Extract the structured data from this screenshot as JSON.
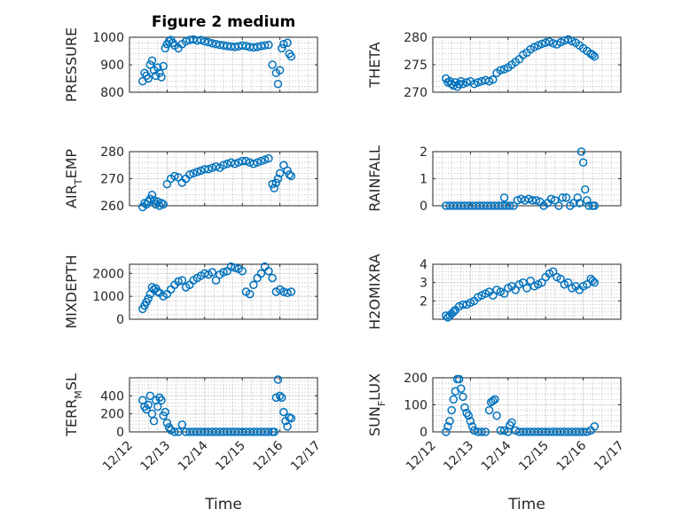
{
  "figure": {
    "title": "Figure 2 medium",
    "x_ticks": [
      "12/12",
      "12/13",
      "12/14",
      "12/15",
      "12/16",
      "12/17"
    ],
    "x_label": "Time",
    "marker_color": "#0072bd"
  },
  "chart_data": [
    {
      "type": "scatter",
      "panel": "pressure",
      "ylabel_parts": [
        "PRESSURE"
      ],
      "ylim": [
        800,
        1000
      ],
      "yticks": [
        800,
        900,
        1000
      ],
      "xlim": [
        "12/12",
        "12/17"
      ],
      "x": [
        12.35,
        12.4,
        12.45,
        12.5,
        12.55,
        12.6,
        12.65,
        12.7,
        12.75,
        12.8,
        12.85,
        12.9,
        12.95,
        13.0,
        13.05,
        13.1,
        13.15,
        13.2,
        13.3,
        13.4,
        13.5,
        13.6,
        13.7,
        13.8,
        13.9,
        14.0,
        14.1,
        14.2,
        14.3,
        14.4,
        14.5,
        14.6,
        14.7,
        14.8,
        14.9,
        15.0,
        15.1,
        15.2,
        15.3,
        15.4,
        15.5,
        15.6,
        15.7,
        15.8,
        15.9,
        15.95,
        16.0,
        16.05,
        16.1,
        16.2,
        16.25,
        16.3
      ],
      "y": [
        840,
        870,
        860,
        850,
        900,
        915,
        880,
        860,
        890,
        870,
        855,
        895,
        960,
        975,
        985,
        990,
        980,
        970,
        960,
        975,
        985,
        990,
        992,
        988,
        990,
        985,
        982,
        978,
        975,
        972,
        970,
        968,
        966,
        965,
        967,
        970,
        968,
        965,
        963,
        965,
        968,
        970,
        972,
        900,
        870,
        830,
        880,
        960,
        975,
        980,
        940,
        930
      ]
    },
    {
      "type": "scatter",
      "panel": "theta",
      "ylabel_parts": [
        "THETA"
      ],
      "ylim": [
        270,
        280
      ],
      "yticks": [
        270,
        275,
        280
      ],
      "xlim": [
        "12/12",
        "12/17"
      ],
      "x": [
        12.35,
        12.4,
        12.45,
        12.5,
        12.55,
        12.6,
        12.65,
        12.7,
        12.75,
        12.8,
        12.9,
        13.0,
        13.1,
        13.2,
        13.3,
        13.4,
        13.5,
        13.6,
        13.7,
        13.8,
        13.9,
        14.0,
        14.1,
        14.2,
        14.3,
        14.4,
        14.5,
        14.6,
        14.7,
        14.8,
        14.9,
        15.0,
        15.1,
        15.2,
        15.3,
        15.4,
        15.5,
        15.6,
        15.7,
        15.8,
        15.9,
        16.0,
        16.1,
        16.2,
        16.25,
        16.3
      ],
      "y": [
        272.5,
        271.8,
        272.0,
        271.5,
        271.2,
        271.8,
        271.0,
        271.5,
        272.0,
        271.5,
        271.8,
        272.0,
        271.5,
        271.8,
        272.0,
        272.2,
        272.0,
        272.3,
        273.5,
        274.0,
        274.2,
        274.5,
        275.0,
        275.5,
        276.0,
        276.8,
        277.2,
        277.8,
        278.2,
        278.5,
        278.8,
        279.0,
        279.2,
        278.9,
        278.7,
        279.1,
        279.4,
        279.6,
        279.3,
        279.0,
        278.5,
        278.0,
        277.5,
        277.0,
        276.8,
        276.5
      ]
    },
    {
      "type": "scatter",
      "panel": "air_temp",
      "ylabel_parts": [
        "AIR",
        "T",
        "EMP"
      ],
      "ylim": [
        260,
        280
      ],
      "yticks": [
        260,
        270,
        280
      ],
      "xlim": [
        "12/12",
        "12/17"
      ],
      "x": [
        12.35,
        12.4,
        12.45,
        12.5,
        12.55,
        12.6,
        12.65,
        12.7,
        12.75,
        12.8,
        12.85,
        12.9,
        13.0,
        13.1,
        13.2,
        13.3,
        13.4,
        13.5,
        13.6,
        13.7,
        13.8,
        13.9,
        14.0,
        14.1,
        14.2,
        14.3,
        14.4,
        14.5,
        14.6,
        14.7,
        14.8,
        14.9,
        15.0,
        15.1,
        15.2,
        15.3,
        15.4,
        15.5,
        15.6,
        15.7,
        15.8,
        15.85,
        15.9,
        15.95,
        16.0,
        16.1,
        16.2,
        16.25,
        16.3
      ],
      "y": [
        259.5,
        261.0,
        260.5,
        261.5,
        262.5,
        264.0,
        262.0,
        260.5,
        261.5,
        260.0,
        261.0,
        260.5,
        268.0,
        270.0,
        271.0,
        270.5,
        268.5,
        270.0,
        271.5,
        272.0,
        272.5,
        273.0,
        273.5,
        273.5,
        274.0,
        274.5,
        274.0,
        275.0,
        275.5,
        276.0,
        275.5,
        276.0,
        276.5,
        276.5,
        276.0,
        275.5,
        276.0,
        276.5,
        277.0,
        277.5,
        268.0,
        266.5,
        268.5,
        270.0,
        272.0,
        275.0,
        273.0,
        271.5,
        271.0
      ]
    },
    {
      "type": "scatter",
      "panel": "rainfall",
      "ylabel_parts": [
        "RAINFALL"
      ],
      "ylim": [
        0,
        2
      ],
      "yticks": [
        0,
        1,
        2
      ],
      "xlim": [
        "12/12",
        "12/17"
      ],
      "x": [
        12.35,
        12.45,
        12.55,
        12.65,
        12.75,
        12.85,
        12.95,
        13.05,
        13.15,
        13.25,
        13.35,
        13.45,
        13.55,
        13.65,
        13.75,
        13.85,
        13.9,
        13.95,
        14.05,
        14.15,
        14.25,
        14.35,
        14.45,
        14.55,
        14.65,
        14.75,
        14.85,
        14.95,
        15.05,
        15.15,
        15.25,
        15.35,
        15.45,
        15.55,
        15.65,
        15.75,
        15.85,
        15.9,
        15.95,
        16.0,
        16.05,
        16.1,
        16.15,
        16.25,
        16.3
      ],
      "y": [
        0,
        0,
        0,
        0,
        0,
        0,
        0,
        0,
        0,
        0,
        0,
        0,
        0,
        0,
        0,
        0,
        0.3,
        0,
        0,
        0,
        0.2,
        0.25,
        0.2,
        0.25,
        0.2,
        0.2,
        0.15,
        0,
        0.1,
        0.25,
        0.2,
        0,
        0.3,
        0.3,
        0,
        0.1,
        0.3,
        0.1,
        2.0,
        1.6,
        0.6,
        0.2,
        0,
        0,
        0
      ]
    },
    {
      "type": "scatter",
      "panel": "mixdepth",
      "ylabel_parts": [
        "MIXDEPTH"
      ],
      "ylim": [
        0,
        2400
      ],
      "yticks": [
        0,
        1000,
        2000
      ],
      "xlim": [
        "12/12",
        "12/17"
      ],
      "x": [
        12.35,
        12.4,
        12.45,
        12.5,
        12.55,
        12.6,
        12.65,
        12.7,
        12.75,
        12.8,
        12.9,
        13.0,
        13.1,
        13.2,
        13.3,
        13.4,
        13.5,
        13.6,
        13.7,
        13.8,
        13.9,
        14.0,
        14.1,
        14.2,
        14.3,
        14.4,
        14.5,
        14.6,
        14.7,
        14.8,
        14.9,
        15.0,
        15.1,
        15.2,
        15.3,
        15.4,
        15.5,
        15.6,
        15.7,
        15.8,
        15.9,
        16.0,
        16.1,
        16.2,
        16.3
      ],
      "y": [
        450,
        600,
        750,
        900,
        1100,
        1400,
        1300,
        1350,
        1200,
        1150,
        1000,
        1100,
        1300,
        1500,
        1650,
        1700,
        1400,
        1500,
        1700,
        1800,
        1900,
        2000,
        1950,
        2050,
        1700,
        1950,
        2050,
        2100,
        2300,
        2250,
        2200,
        2100,
        1200,
        1100,
        1500,
        1800,
        2000,
        2300,
        2100,
        1800,
        1200,
        1300,
        1200,
        1150,
        1200
      ]
    },
    {
      "type": "scatter",
      "panel": "h2omixra",
      "ylabel_parts": [
        "H2OMIXRA"
      ],
      "ylim": [
        1,
        4
      ],
      "yticks": [
        2,
        3,
        4
      ],
      "xlim": [
        "12/12",
        "12/17"
      ],
      "x": [
        12.35,
        12.4,
        12.45,
        12.5,
        12.55,
        12.6,
        12.7,
        12.8,
        12.9,
        13.0,
        13.1,
        13.2,
        13.3,
        13.4,
        13.5,
        13.6,
        13.7,
        13.8,
        13.9,
        14.0,
        14.1,
        14.2,
        14.3,
        14.4,
        14.5,
        14.6,
        14.7,
        14.8,
        14.9,
        15.0,
        15.1,
        15.2,
        15.3,
        15.4,
        15.5,
        15.6,
        15.7,
        15.8,
        15.9,
        16.0,
        16.1,
        16.2,
        16.25,
        16.3
      ],
      "y": [
        1.2,
        1.1,
        1.2,
        1.3,
        1.4,
        1.5,
        1.7,
        1.8,
        1.8,
        1.9,
        2.0,
        2.2,
        2.3,
        2.4,
        2.5,
        2.3,
        2.6,
        2.5,
        2.4,
        2.7,
        2.8,
        2.6,
        2.9,
        3.0,
        2.7,
        3.1,
        2.8,
        2.9,
        3.0,
        3.3,
        3.5,
        3.6,
        3.3,
        3.2,
        2.9,
        3.0,
        2.7,
        2.8,
        2.6,
        2.8,
        2.9,
        3.2,
        3.1,
        3.0
      ]
    },
    {
      "type": "scatter",
      "panel": "terr_msl",
      "ylabel_parts": [
        "TERR",
        "M",
        "SL"
      ],
      "ylim": [
        0,
        600
      ],
      "yticks": [
        0,
        200,
        400
      ],
      "xlim": [
        "12/12",
        "12/17"
      ],
      "x": [
        12.35,
        12.4,
        12.45,
        12.5,
        12.55,
        12.6,
        12.65,
        12.7,
        12.75,
        12.8,
        12.85,
        12.9,
        12.95,
        13.0,
        13.05,
        13.1,
        13.2,
        13.3,
        13.4,
        13.5,
        13.6,
        13.7,
        13.8,
        13.9,
        14.0,
        14.1,
        14.2,
        14.3,
        14.4,
        14.5,
        14.6,
        14.7,
        14.8,
        14.9,
        15.0,
        15.1,
        15.2,
        15.3,
        15.4,
        15.5,
        15.6,
        15.7,
        15.8,
        15.85,
        15.9,
        15.95,
        16.0,
        16.05,
        16.1,
        16.15,
        16.2,
        16.25,
        16.3
      ],
      "y": [
        350,
        280,
        250,
        300,
        400,
        200,
        120,
        350,
        280,
        380,
        350,
        180,
        220,
        100,
        50,
        20,
        0,
        0,
        80,
        0,
        0,
        0,
        0,
        0,
        0,
        0,
        0,
        0,
        0,
        0,
        0,
        0,
        0,
        0,
        0,
        0,
        0,
        0,
        0,
        0,
        0,
        0,
        0,
        0,
        380,
        580,
        400,
        380,
        220,
        120,
        60,
        160,
        150
      ]
    },
    {
      "type": "scatter",
      "panel": "sun_flux",
      "ylabel_parts": [
        "SUN",
        "F",
        "LUX"
      ],
      "ylim": [
        0,
        200
      ],
      "yticks": [
        0,
        100,
        200
      ],
      "xlim": [
        "12/12",
        "12/17"
      ],
      "x": [
        12.35,
        12.4,
        12.45,
        12.5,
        12.55,
        12.6,
        12.65,
        12.7,
        12.75,
        12.8,
        12.85,
        12.9,
        12.95,
        13.0,
        13.05,
        13.1,
        13.2,
        13.3,
        13.4,
        13.5,
        13.55,
        13.6,
        13.65,
        13.7,
        13.8,
        13.9,
        14.0,
        14.05,
        14.1,
        14.2,
        14.3,
        14.4,
        14.5,
        14.6,
        14.7,
        14.8,
        14.9,
        15.0,
        15.1,
        15.2,
        15.3,
        15.4,
        15.5,
        15.6,
        15.7,
        15.8,
        15.9,
        16.0,
        16.1,
        16.2,
        16.3
      ],
      "y": [
        0,
        20,
        40,
        80,
        120,
        150,
        195,
        195,
        160,
        130,
        90,
        70,
        60,
        40,
        20,
        5,
        0,
        0,
        0,
        80,
        110,
        115,
        120,
        60,
        5,
        5,
        0,
        25,
        35,
        5,
        0,
        0,
        0,
        0,
        0,
        0,
        0,
        0,
        0,
        0,
        0,
        0,
        0,
        0,
        0,
        0,
        0,
        0,
        0,
        5,
        20
      ]
    }
  ]
}
